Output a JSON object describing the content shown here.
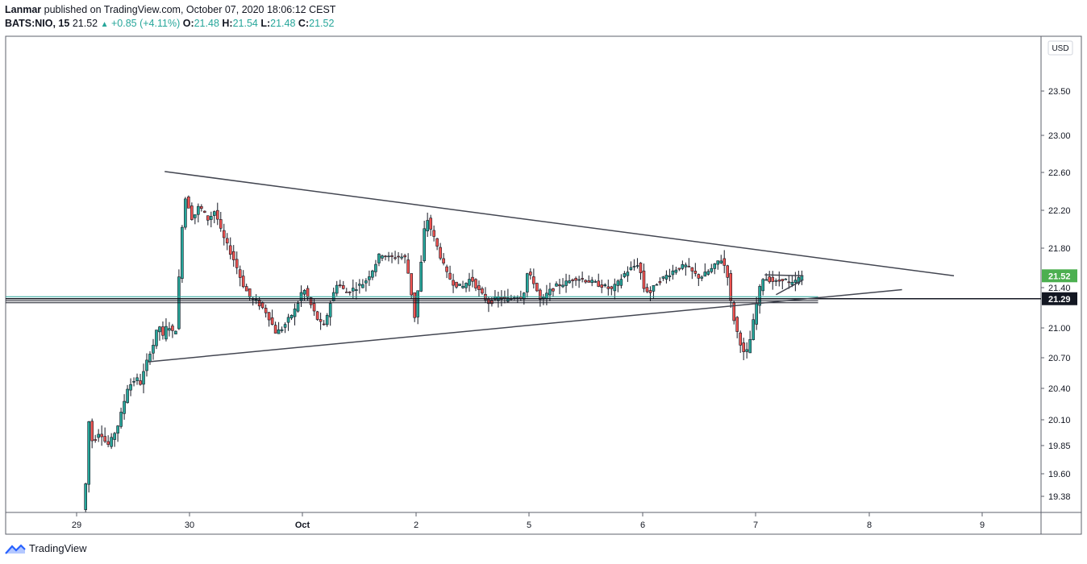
{
  "header": {
    "author": "Lanmar",
    "published_text": "published on TradingView.com, October 07, 2020 18:06:12 CEST",
    "symbol": "BATS:NIO, 15",
    "last": "21.52",
    "change": "+0.85 (+4.11%)",
    "o_label": "O:",
    "o": "21.48",
    "h_label": "H:",
    "h": "21.54",
    "l_label": "L:",
    "l": "21.48",
    "c_label": "C:",
    "c": "21.52"
  },
  "currency": "USD",
  "footer": {
    "brand": "TradingView"
  },
  "colors": {
    "up": "#26a69a",
    "down": "#ef5350",
    "trendline": "#434651",
    "hline": "#131722",
    "price_badge": "#4caf50"
  },
  "chart_data": {
    "type": "candlestick",
    "y_ticks": [
      23.5,
      23.0,
      22.6,
      22.2,
      21.8,
      21.4,
      21.0,
      20.7,
      20.4,
      20.1,
      19.85,
      19.6,
      19.38
    ],
    "y_tick_labels": [
      "23.50",
      "23.00",
      "22.60",
      "22.20",
      "21.80",
      "21.40",
      "21.00",
      "20.70",
      "20.40",
      "20.10",
      "19.85",
      "19.60",
      "19.38"
    ],
    "ylim": [
      19.28,
      23.85
    ],
    "x_ticks": [
      {
        "label": "29",
        "pos": 0
      },
      {
        "label": "30",
        "pos": 1
      },
      {
        "label": "Oct",
        "pos": 2
      },
      {
        "label": "2",
        "pos": 3
      },
      {
        "label": "5",
        "pos": 4
      },
      {
        "label": "6",
        "pos": 5
      },
      {
        "label": "7",
        "pos": 6
      },
      {
        "label": "8",
        "pos": 7
      },
      {
        "label": "9",
        "pos": 8
      }
    ],
    "price_labels": [
      {
        "value": 21.52,
        "text": "21.52",
        "style": "last"
      },
      {
        "value": 21.29,
        "text": "21.29",
        "style": "line"
      }
    ],
    "horizontal_lines": [
      21.29,
      21.31,
      21.27,
      21.25
    ],
    "trendlines": [
      {
        "from": [
          0.78,
          22.61
        ],
        "to": [
          7.75,
          21.52
        ]
      },
      {
        "from": [
          0.63,
          20.66
        ],
        "to": [
          7.29,
          21.38
        ]
      },
      {
        "from": [
          6.08,
          21.53
        ],
        "to": [
          6.42,
          21.52
        ]
      },
      {
        "from": [
          6.18,
          21.33
        ],
        "to": [
          6.42,
          21.48
        ]
      }
    ],
    "pivots": [
      [
        0.08,
        19.25
      ],
      [
        0.1,
        19.6
      ],
      [
        0.12,
        20.1
      ],
      [
        0.15,
        19.9
      ],
      [
        0.18,
        19.92
      ],
      [
        0.22,
        20.0
      ],
      [
        0.26,
        19.9
      ],
      [
        0.3,
        19.85
      ],
      [
        0.34,
        19.95
      ],
      [
        0.38,
        20.05
      ],
      [
        0.42,
        20.2
      ],
      [
        0.46,
        20.4
      ],
      [
        0.5,
        20.45
      ],
      [
        0.54,
        20.5
      ],
      [
        0.58,
        20.45
      ],
      [
        0.62,
        20.6
      ],
      [
        0.66,
        20.75
      ],
      [
        0.7,
        20.85
      ],
      [
        0.74,
        21.05
      ],
      [
        0.78,
        20.9
      ],
      [
        0.82,
        21.05
      ],
      [
        0.86,
        20.95
      ],
      [
        0.9,
        21.0
      ],
      [
        0.94,
        21.95
      ],
      [
        0.98,
        22.35
      ],
      [
        1.04,
        22.1
      ],
      [
        1.1,
        22.25
      ],
      [
        1.18,
        22.1
      ],
      [
        1.24,
        22.2
      ],
      [
        1.3,
        21.95
      ],
      [
        1.36,
        21.8
      ],
      [
        1.42,
        21.65
      ],
      [
        1.48,
        21.45
      ],
      [
        1.55,
        21.3
      ],
      [
        1.62,
        21.25
      ],
      [
        1.7,
        21.15
      ],
      [
        1.78,
        20.95
      ],
      [
        1.84,
        21.0
      ],
      [
        1.9,
        21.1
      ],
      [
        1.96,
        21.2
      ],
      [
        2.02,
        21.4
      ],
      [
        2.08,
        21.25
      ],
      [
        2.14,
        21.1
      ],
      [
        2.2,
        21.0
      ],
      [
        2.26,
        21.25
      ],
      [
        2.32,
        21.45
      ],
      [
        2.4,
        21.35
      ],
      [
        2.48,
        21.4
      ],
      [
        2.56,
        21.45
      ],
      [
        2.64,
        21.6
      ],
      [
        2.7,
        21.75
      ],
      [
        2.78,
        21.7
      ],
      [
        2.86,
        21.72
      ],
      [
        2.92,
        21.7
      ],
      [
        2.96,
        21.45
      ],
      [
        3.0,
        21.1
      ],
      [
        3.05,
        21.55
      ],
      [
        3.1,
        22.15
      ],
      [
        3.16,
        21.95
      ],
      [
        3.22,
        21.75
      ],
      [
        3.28,
        21.55
      ],
      [
        3.34,
        21.45
      ],
      [
        3.42,
        21.4
      ],
      [
        3.5,
        21.5
      ],
      [
        3.58,
        21.35
      ],
      [
        3.66,
        21.25
      ],
      [
        3.74,
        21.3
      ],
      [
        3.82,
        21.28
      ],
      [
        3.9,
        21.32
      ],
      [
        3.96,
        21.3
      ],
      [
        4.0,
        21.55
      ],
      [
        4.06,
        21.45
      ],
      [
        4.12,
        21.25
      ],
      [
        4.18,
        21.35
      ],
      [
        4.26,
        21.42
      ],
      [
        4.34,
        21.45
      ],
      [
        4.42,
        21.5
      ],
      [
        4.5,
        21.48
      ],
      [
        4.58,
        21.45
      ],
      [
        4.66,
        21.42
      ],
      [
        4.74,
        21.38
      ],
      [
        4.8,
        21.45
      ],
      [
        4.86,
        21.55
      ],
      [
        4.92,
        21.6
      ],
      [
        4.98,
        21.65
      ],
      [
        5.02,
        21.4
      ],
      [
        5.08,
        21.35
      ],
      [
        5.14,
        21.45
      ],
      [
        5.2,
        21.5
      ],
      [
        5.26,
        21.55
      ],
      [
        5.32,
        21.6
      ],
      [
        5.4,
        21.62
      ],
      [
        5.46,
        21.55
      ],
      [
        5.52,
        21.5
      ],
      [
        5.58,
        21.55
      ],
      [
        5.64,
        21.6
      ],
      [
        5.7,
        21.7
      ],
      [
        5.76,
        21.58
      ],
      [
        5.8,
        21.2
      ],
      [
        5.84,
        21.0
      ],
      [
        5.88,
        20.85
      ],
      [
        5.92,
        20.7
      ],
      [
        5.96,
        20.85
      ],
      [
        6.0,
        21.1
      ],
      [
        6.04,
        21.35
      ],
      [
        6.08,
        21.5
      ],
      [
        6.14,
        21.48
      ],
      [
        6.2,
        21.45
      ],
      [
        6.26,
        21.5
      ],
      [
        6.32,
        21.42
      ],
      [
        6.38,
        21.48
      ],
      [
        6.42,
        21.52
      ]
    ]
  }
}
